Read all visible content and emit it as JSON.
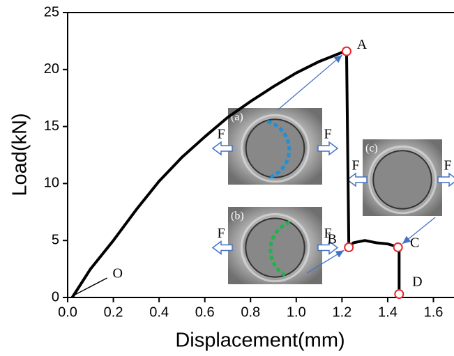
{
  "chart_data": {
    "type": "line",
    "x_label": "Displacement(mm)",
    "y_label": "Load(kN)",
    "x": [
      0.02,
      0.1,
      0.2,
      0.3,
      0.4,
      0.5,
      0.6,
      0.7,
      0.8,
      0.9,
      1.0,
      1.1,
      1.2,
      1.22,
      1.23,
      1.25,
      1.3,
      1.35,
      1.4,
      1.45,
      1.45
    ],
    "values": [
      0,
      2.5,
      5.0,
      7.7,
      10.2,
      12.3,
      14.1,
      15.8,
      17.2,
      18.5,
      19.7,
      20.7,
      21.5,
      21.6,
      4.4,
      4.8,
      5.0,
      4.8,
      4.7,
      4.4,
      0.3
    ],
    "color": "#000000",
    "points": {
      "x": [
        1.22,
        1.23,
        1.445,
        1.45
      ],
      "values": [
        21.6,
        4.4,
        4.4,
        0.3
      ],
      "labels": [
        "A",
        "B",
        "C",
        "D"
      ],
      "color": "#e8262b"
    },
    "xlim": [
      0,
      1.69
    ],
    "ylim": [
      0,
      25
    ],
    "xticks": [
      {
        "value": 0,
        "label": "0.0"
      },
      0.2,
      0.4,
      0.6,
      0.8,
      {
        "value": 1,
        "label": "1.0"
      },
      1.2,
      1.4,
      1.6
    ],
    "yticks": [
      0,
      5,
      10,
      15,
      20,
      25
    ],
    "grid": false,
    "annotations": {
      "origin": "O",
      "force": "F",
      "insets": [
        "(a)",
        "(b)",
        "(c)"
      ]
    }
  }
}
